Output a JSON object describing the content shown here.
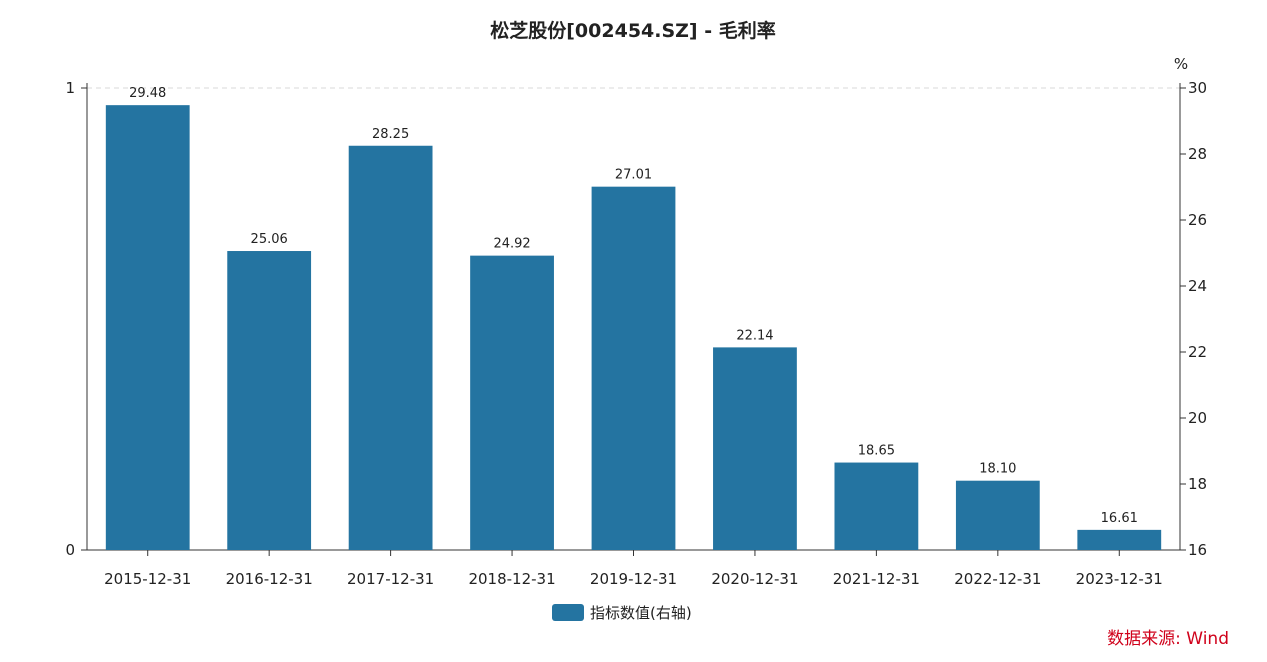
{
  "chart_data": {
    "type": "bar",
    "title": "松芝股份[002454.SZ] - 毛利率",
    "categories": [
      "2015-12-31",
      "2016-12-31",
      "2017-12-31",
      "2018-12-31",
      "2019-12-31",
      "2020-12-31",
      "2021-12-31",
      "2022-12-31",
      "2023-12-31"
    ],
    "series": [
      {
        "name": "指标数值(右轴)",
        "axis": "right",
        "color": "#2474a1",
        "values": [
          29.48,
          25.06,
          28.25,
          24.92,
          27.01,
          22.14,
          18.65,
          18.1,
          16.61
        ],
        "labels": [
          "29.48",
          "25.06",
          "28.25",
          "24.92",
          "27.01",
          "22.14",
          "18.65",
          "18.10",
          "16.61"
        ]
      }
    ],
    "left_axis": {
      "ylim": [
        0,
        1
      ],
      "ticks": [
        "0",
        "1"
      ]
    },
    "right_axis": {
      "unit": "%",
      "ylim": [
        16,
        30
      ],
      "ticks": [
        "16",
        "18",
        "20",
        "22",
        "24",
        "26",
        "28",
        "30"
      ]
    },
    "grid": "dashed line at top only",
    "legend_placement": "bottom-center"
  },
  "source_text": "数据来源: Wind"
}
